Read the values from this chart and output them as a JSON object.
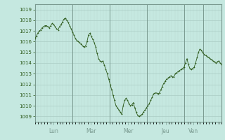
{
  "background_color": "#c5e8e0",
  "plot_bg_color": "#c5e8e0",
  "line_color": "#2d5a1b",
  "marker_color": "#2d5a1b",
  "grid_color_major": "#aaccc4",
  "grid_color_minor": "#b8d8d0",
  "vline_color": "#7a9a90",
  "tick_color": "#2d5a1b",
  "ylim_min": 1008.5,
  "ylim_max": 1019.5,
  "yticks": [
    1009,
    1010,
    1011,
    1012,
    1013,
    1014,
    1015,
    1016,
    1017,
    1018,
    1019
  ],
  "day_labels": [
    "Lun",
    "Mar",
    "Mer",
    "Jeu",
    "Ven"
  ],
  "pressure_data": [
    1016.3,
    1016.5,
    1016.8,
    1017.0,
    1017.1,
    1017.3,
    1017.4,
    1017.5,
    1017.5,
    1017.4,
    1017.3,
    1017.5,
    1017.7,
    1017.6,
    1017.4,
    1017.2,
    1017.1,
    1017.4,
    1017.6,
    1017.8,
    1018.1,
    1018.2,
    1018.0,
    1017.8,
    1017.5,
    1017.2,
    1016.9,
    1016.6,
    1016.3,
    1016.1,
    1016.0,
    1015.9,
    1015.8,
    1015.6,
    1015.5,
    1015.6,
    1016.0,
    1016.6,
    1016.8,
    1016.5,
    1016.2,
    1015.9,
    1015.5,
    1014.9,
    1014.4,
    1014.2,
    1014.1,
    1014.2,
    1013.8,
    1013.4,
    1013.0,
    1012.5,
    1012.0,
    1011.5,
    1011.0,
    1010.5,
    1010.0,
    1009.8,
    1009.6,
    1009.4,
    1009.2,
    1010.0,
    1010.5,
    1010.7,
    1010.5,
    1010.2,
    1010.0,
    1010.1,
    1010.3,
    1009.8,
    1009.4,
    1009.1,
    1009.0,
    1009.1,
    1009.2,
    1009.4,
    1009.6,
    1009.8,
    1010.0,
    1010.2,
    1010.5,
    1010.8,
    1011.1,
    1011.2,
    1011.2,
    1011.1,
    1011.2,
    1011.5,
    1011.8,
    1012.1,
    1012.3,
    1012.5,
    1012.6,
    1012.7,
    1012.8,
    1012.7,
    1012.7,
    1013.0,
    1013.1,
    1013.2,
    1013.3,
    1013.4,
    1013.5,
    1013.6,
    1014.0,
    1014.4,
    1013.9,
    1013.5,
    1013.4,
    1013.5,
    1013.6,
    1014.0,
    1014.5,
    1015.0,
    1015.3,
    1015.2,
    1015.0,
    1014.8,
    1014.7,
    1014.6,
    1014.5,
    1014.4,
    1014.3,
    1014.2,
    1014.1,
    1014.0,
    1014.1,
    1014.2,
    1014.0,
    1013.9
  ]
}
